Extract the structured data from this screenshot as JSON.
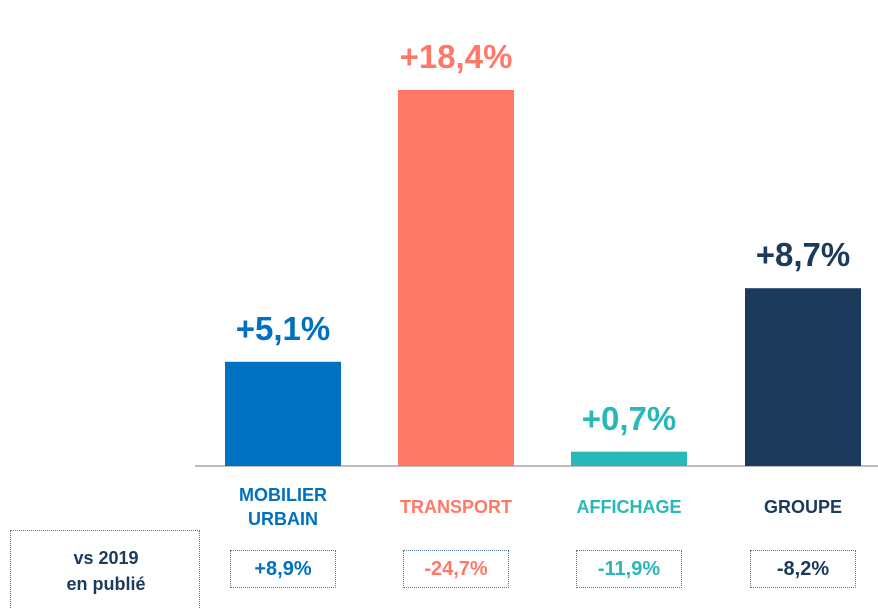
{
  "chart_data": {
    "type": "bar",
    "categories": [
      "MOBILIER URBAIN",
      "TRANSPORT",
      "AFFICHAGE",
      "GROUPE"
    ],
    "values": [
      5.1,
      18.4,
      0.7,
      8.7
    ],
    "value_labels": [
      "+5,1%",
      "+18,4%",
      "+0,7%",
      "+8,7%"
    ],
    "colors": [
      "#0070c0",
      "#ff7868",
      "#2ab7b7",
      "#1b3a5c"
    ],
    "comparison": {
      "label": "vs 2019 en publié",
      "values": [
        8.9,
        -24.7,
        -11.9,
        -8.2
      ],
      "value_labels": [
        "+8,9%",
        "-24,7%",
        "-11,9%",
        "-8,2%"
      ]
    }
  }
}
